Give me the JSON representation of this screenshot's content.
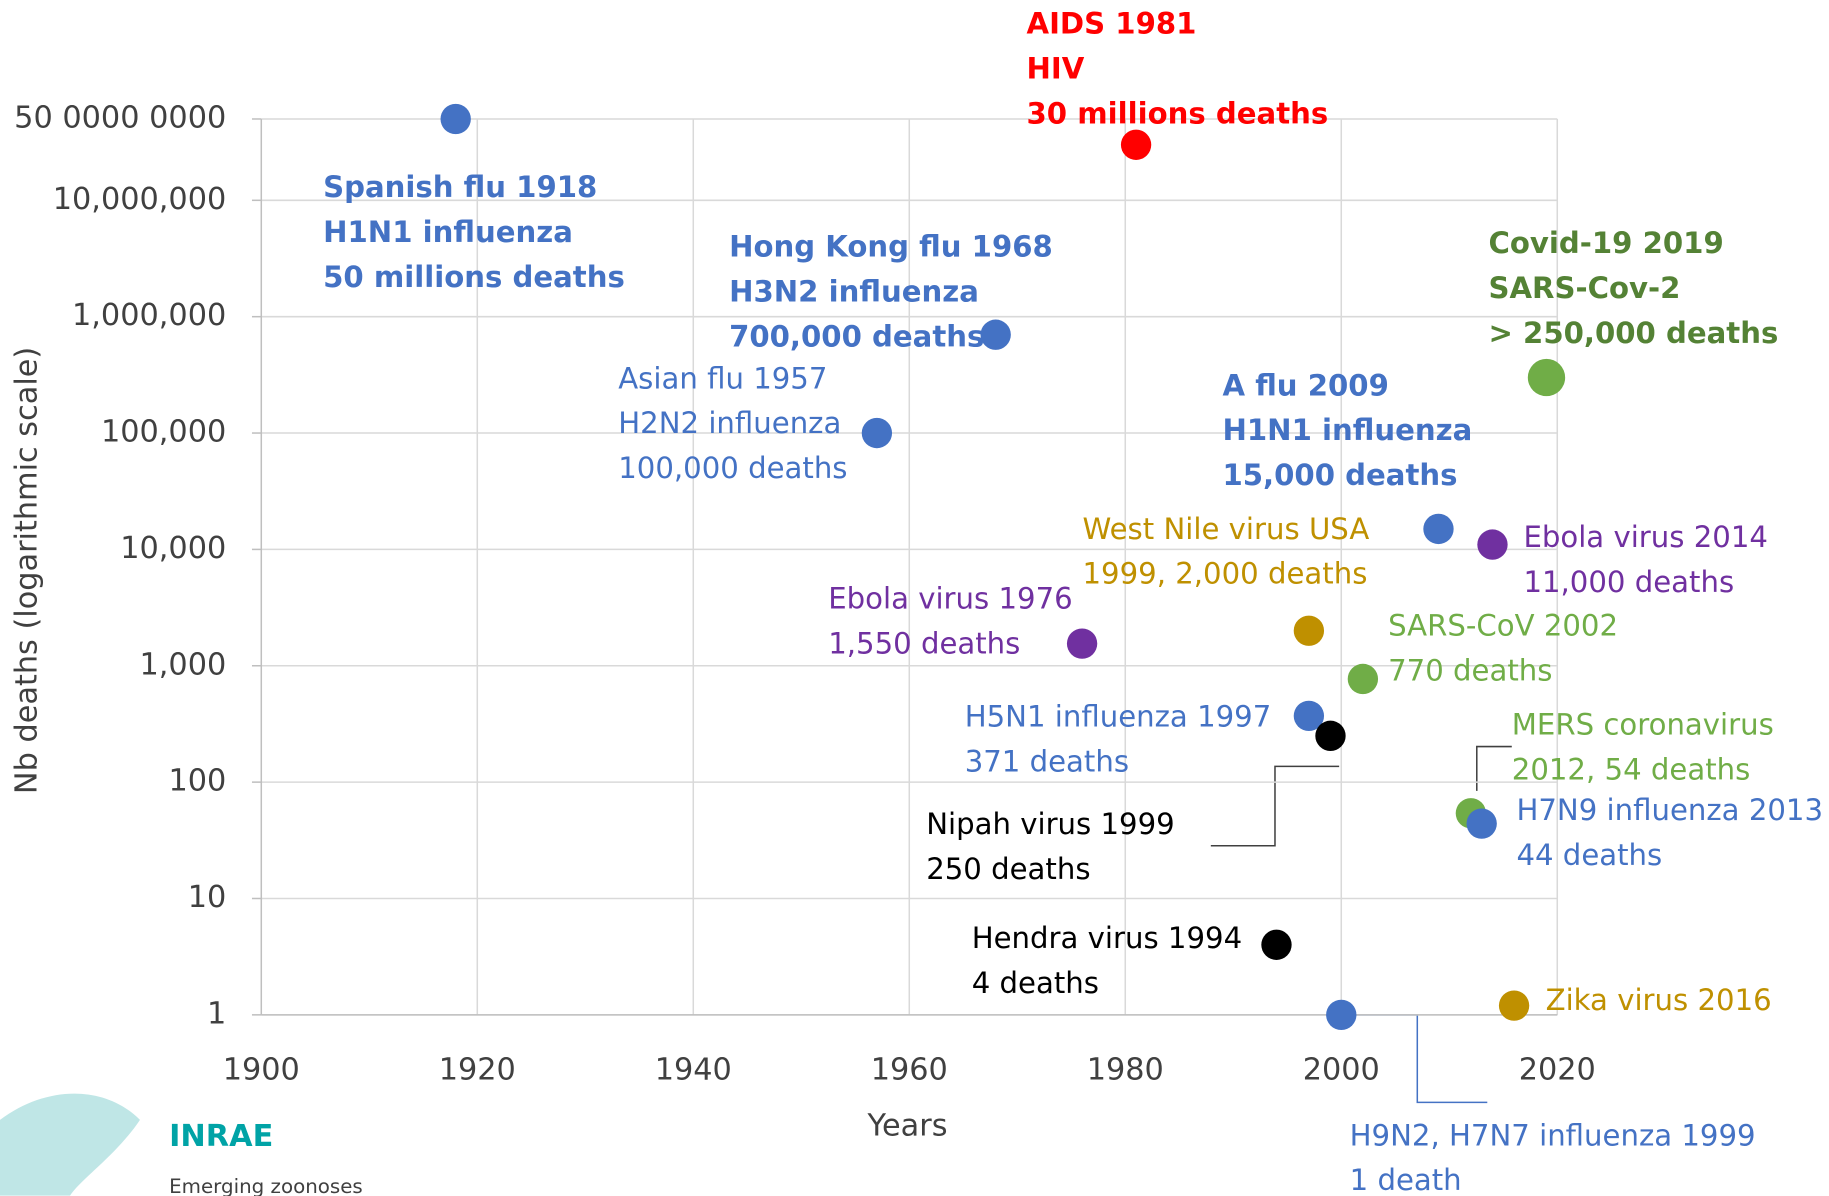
{
  "chart_data": {
    "type": "scatter",
    "x_label": "Years",
    "y_label": "Nb deaths (logarithmic scale)",
    "log_y": true,
    "grid": true,
    "xlim": [
      1900,
      2020
    ],
    "xticks": [
      1900,
      1920,
      1940,
      1960,
      1980,
      2000,
      2020
    ],
    "ylim": [
      1,
      50000000
    ],
    "yticks": [
      1,
      10,
      100,
      {
        "value": 1000,
        "label": "1,000"
      },
      {
        "value": 10000,
        "label": "10,000"
      },
      {
        "value": 100000,
        "label": "100,000"
      },
      {
        "value": 1000000,
        "label": "1,000,000"
      },
      {
        "value": 10000000,
        "label": "10,000,000"
      },
      {
        "value": 50000000,
        "label": "50 0000 0000"
      }
    ],
    "points": [
      {
        "x": 1918,
        "y": 50000000,
        "color": "#4472c4",
        "bold": true,
        "label": [
          "Spanish flu 1918",
          "H1N1 influenza",
          "50 millions deaths"
        ]
      },
      {
        "x": 1981,
        "y": 30000000,
        "color": "#ff0000",
        "bold": true,
        "label": [
          "AIDS 1981",
          "HIV",
          "30 millions deaths"
        ]
      },
      {
        "x": 1968,
        "y": 700000,
        "color": "#4472c4",
        "bold": true,
        "label": [
          "Hong Kong flu 1968",
          "H3N2 influenza",
          "700,000 deaths"
        ]
      },
      {
        "x": 1957,
        "y": 100000,
        "color": "#4472c4",
        "bold": false,
        "label": [
          "Asian flu 1957",
          "H2N2 influenza",
          "100,000 deaths"
        ]
      },
      {
        "x": 2009,
        "y": 15000,
        "color": "#4472c4",
        "bold": true,
        "label": [
          "A flu 2009",
          "H1N1 influenza",
          "15,000 deaths"
        ]
      },
      {
        "x": 2019,
        "y": 300000,
        "color": "#70ad47",
        "bold": true,
        "label": [
          "Covid-19 2019",
          "SARS-Cov-2",
          "> 250,000 deaths"
        ]
      },
      {
        "x": 2014,
        "y": 11000,
        "color": "#7030a0",
        "bold": false,
        "label": [
          "Ebola virus 2014",
          "11,000 deaths"
        ]
      },
      {
        "x": 1997,
        "y": 2000,
        "color": "#bf9000",
        "bold": false,
        "label": [
          "West Nile virus USA",
          "1999, 2,000 deaths"
        ]
      },
      {
        "x": 1976,
        "y": 1550,
        "color": "#7030a0",
        "bold": false,
        "label": [
          "Ebola virus 1976",
          "1,550 deaths"
        ]
      },
      {
        "x": 2002,
        "y": 770,
        "color": "#70ad47",
        "bold": false,
        "label": [
          "SARS-CoV 2002",
          "770 deaths"
        ]
      },
      {
        "x": 1997,
        "y": 371,
        "color": "#4472c4",
        "bold": false,
        "label": [
          "H5N1 influenza 1997",
          "371 deaths"
        ]
      },
      {
        "x": 1999,
        "y": 250,
        "color": "#000000",
        "bold": false,
        "label": [
          "Nipah virus 1999",
          "250 deaths"
        ]
      },
      {
        "x": 2012,
        "y": 54,
        "color": "#70ad47",
        "bold": false,
        "label": [
          "MERS coronavirus",
          "2012, 54 deaths"
        ]
      },
      {
        "x": 2013,
        "y": 44,
        "color": "#4472c4",
        "bold": false,
        "label": [
          "H7N9 influenza 2013",
          "44 deaths"
        ]
      },
      {
        "x": 1994,
        "y": 4,
        "color": "#000000",
        "bold": false,
        "label": [
          "Hendra virus 1994",
          "4 deaths"
        ]
      },
      {
        "x": 2016,
        "y": 1.2,
        "color": "#bf9000",
        "bold": false,
        "label": [
          "Zika virus 2016"
        ]
      },
      {
        "x": 2000,
        "y": 1,
        "color": "#4472c4",
        "bold": false,
        "label": [
          "H9N2, H7N7 influenza 1999",
          "1 death"
        ]
      }
    ]
  },
  "footer": {
    "brand": "INRAE",
    "subtitle": "Emerging zoonoses"
  }
}
